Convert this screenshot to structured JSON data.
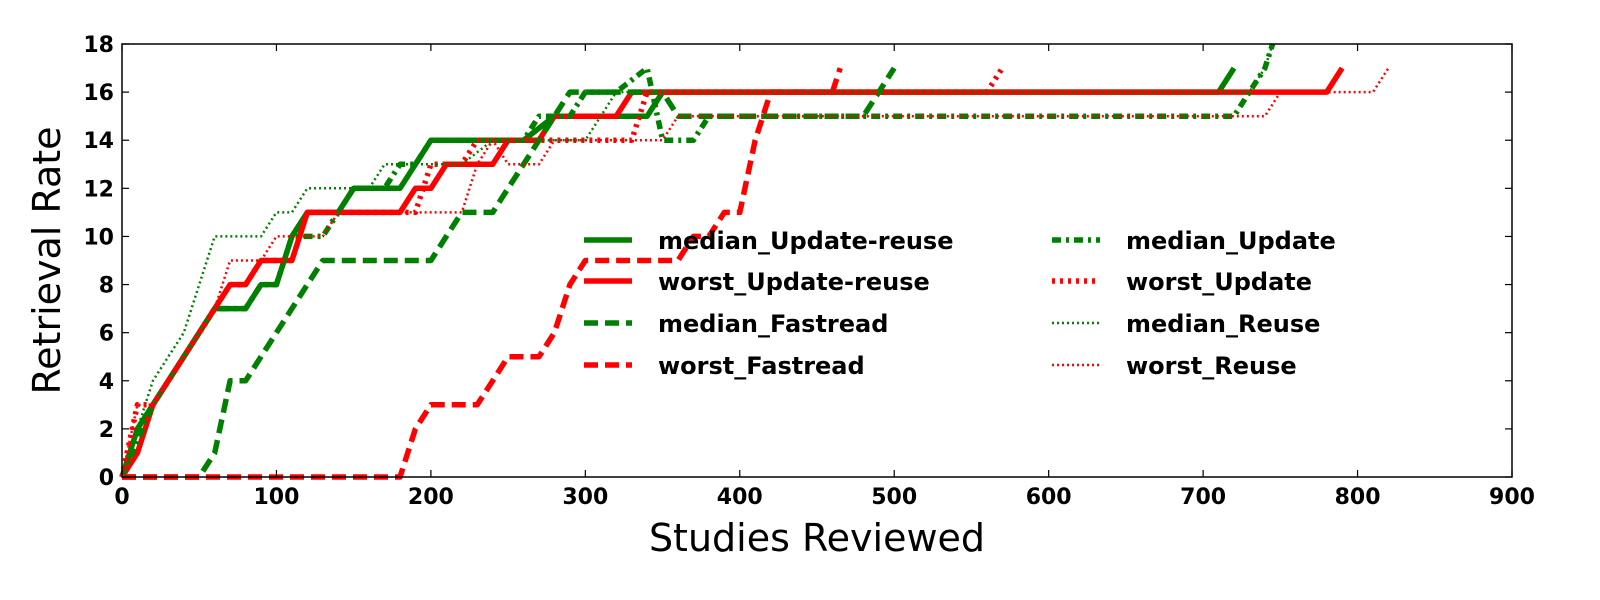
{
  "chart_data": {
    "type": "line",
    "title": "",
    "xlabel": "Studies Reviewed",
    "ylabel": "Retrieval Rate",
    "xlim": [
      0,
      900
    ],
    "ylim": [
      0,
      18
    ],
    "xticks": [
      0,
      100,
      200,
      300,
      400,
      500,
      600,
      700,
      800,
      900
    ],
    "yticks": [
      0,
      2,
      4,
      6,
      8,
      10,
      12,
      14,
      16,
      18
    ],
    "grid": false,
    "legend_placement": "center",
    "legend_columns": 2,
    "series": [
      {
        "name": "median_Update-reuse",
        "color": "#008000",
        "style": "solid",
        "x": [
          0,
          10,
          20,
          30,
          40,
          50,
          60,
          70,
          80,
          90,
          100,
          110,
          120,
          130,
          140,
          150,
          160,
          170,
          180,
          190,
          200,
          220,
          240,
          260,
          280,
          300,
          310,
          320,
          330,
          340,
          350,
          360,
          710,
          720
        ],
        "y": [
          0,
          2,
          3,
          4,
          5,
          6,
          7,
          7,
          7,
          8,
          8,
          10,
          11,
          11,
          11,
          12,
          12,
          12,
          12,
          13,
          14,
          14,
          14,
          14,
          15,
          15,
          15,
          15,
          15,
          15,
          16,
          16,
          16,
          17
        ]
      },
      {
        "name": "worst_Update-reuse",
        "color": "#ff0000",
        "style": "solid",
        "x": [
          0,
          10,
          20,
          30,
          40,
          50,
          60,
          70,
          80,
          90,
          100,
          110,
          120,
          130,
          140,
          150,
          160,
          170,
          180,
          190,
          200,
          210,
          220,
          230,
          240,
          250,
          260,
          270,
          280,
          290,
          300,
          320,
          330,
          340,
          780,
          790
        ],
        "y": [
          0,
          1,
          3,
          4,
          5,
          6,
          7,
          8,
          8,
          9,
          9,
          9,
          11,
          11,
          11,
          11,
          11,
          11,
          11,
          12,
          12,
          13,
          13,
          13,
          13,
          14,
          14,
          14,
          15,
          15,
          15,
          15,
          16,
          16,
          16,
          17
        ]
      },
      {
        "name": "median_Fastread",
        "color": "#008000",
        "style": "dashed",
        "x": [
          0,
          50,
          60,
          70,
          80,
          90,
          100,
          110,
          120,
          130,
          140,
          150,
          160,
          170,
          180,
          190,
          200,
          210,
          220,
          230,
          240,
          250,
          260,
          270,
          280,
          290,
          300,
          340,
          350,
          360,
          480,
          490,
          500
        ],
        "y": [
          0,
          0,
          1,
          4,
          4,
          5,
          6,
          7,
          8,
          9,
          9,
          9,
          9,
          9,
          9,
          9,
          9,
          10,
          11,
          11,
          11,
          12,
          13,
          14,
          15,
          16,
          16,
          16,
          16,
          15,
          15,
          16,
          17
        ]
      },
      {
        "name": "worst_Fastread",
        "color": "#ff0000",
        "style": "dashed",
        "x": [
          0,
          180,
          190,
          200,
          210,
          220,
          230,
          240,
          250,
          260,
          270,
          280,
          290,
          300,
          310,
          320,
          330,
          340,
          350,
          360,
          370,
          380,
          390,
          400,
          410,
          420,
          430,
          450,
          460,
          465
        ],
        "y": [
          0,
          0,
          2,
          3,
          3,
          3,
          3,
          4,
          5,
          5,
          5,
          6,
          8,
          9,
          9,
          9,
          9,
          9,
          9,
          9,
          10,
          10,
          11,
          11,
          14,
          16,
          16,
          16,
          16,
          17
        ]
      },
      {
        "name": "median_Update",
        "color": "#008000",
        "style": "dashdot",
        "x": [
          0,
          20,
          40,
          60,
          70,
          80,
          90,
          100,
          110,
          120,
          130,
          140,
          150,
          160,
          170,
          180,
          190,
          200,
          220,
          240,
          260,
          270,
          280,
          290,
          300,
          320,
          340,
          350,
          360,
          370,
          380,
          390,
          410,
          720,
          730,
          740,
          745
        ],
        "y": [
          0,
          3,
          5,
          7,
          7,
          7,
          8,
          8,
          10,
          10,
          10,
          11,
          12,
          12,
          12,
          13,
          13,
          14,
          14,
          14,
          14,
          15,
          15,
          15,
          16,
          16,
          17,
          14,
          14,
          14,
          15,
          15,
          15,
          15,
          16,
          17,
          18
        ]
      },
      {
        "name": "worst_Update",
        "color": "#ff0000",
        "style": "dotted",
        "x": [
          0,
          10,
          20,
          30,
          40,
          50,
          60,
          70,
          80,
          90,
          100,
          110,
          120,
          130,
          140,
          150,
          160,
          170,
          180,
          190,
          200,
          210,
          220,
          230,
          240,
          250,
          260,
          270,
          280,
          300,
          330,
          340,
          360,
          380,
          400,
          520,
          550,
          560,
          570
        ],
        "y": [
          0,
          3,
          3,
          4,
          5,
          6,
          7,
          8,
          8,
          9,
          9,
          9,
          11,
          11,
          11,
          11,
          11,
          11,
          11,
          11,
          13,
          13,
          13,
          14,
          14,
          14,
          14,
          14,
          14,
          14,
          14,
          16,
          16,
          16,
          16,
          16,
          16,
          16,
          17
        ]
      },
      {
        "name": "median_Reuse",
        "color": "#008000",
        "style": "densedot",
        "x": [
          0,
          10,
          20,
          30,
          40,
          50,
          60,
          70,
          80,
          90,
          100,
          110,
          120,
          130,
          140,
          150,
          160,
          170,
          180,
          190,
          200,
          220,
          240,
          260,
          280,
          300,
          320,
          330,
          340,
          730,
          740,
          745
        ],
        "y": [
          0,
          2,
          4,
          5,
          6,
          8,
          10,
          10,
          10,
          10,
          11,
          11,
          12,
          12,
          12,
          12,
          12,
          13,
          13,
          13,
          13,
          13,
          14,
          14,
          14,
          14,
          16,
          16,
          16,
          16,
          17,
          18
        ]
      },
      {
        "name": "worst_Reuse",
        "color": "#ff0000",
        "style": "densedot",
        "x": [
          0,
          10,
          20,
          30,
          40,
          50,
          60,
          70,
          80,
          90,
          100,
          110,
          120,
          130,
          140,
          150,
          160,
          170,
          180,
          190,
          200,
          210,
          220,
          230,
          240,
          250,
          260,
          270,
          280,
          300,
          350,
          360,
          370,
          390,
          400,
          500,
          740,
          750,
          760,
          800,
          810,
          820
        ],
        "y": [
          0,
          3,
          3,
          4,
          5,
          6,
          7,
          9,
          9,
          9,
          10,
          10,
          10,
          10,
          11,
          11,
          11,
          11,
          11,
          11,
          11,
          11,
          11,
          13,
          14,
          13,
          13,
          13,
          14,
          14,
          14,
          15,
          15,
          15,
          15,
          15,
          15,
          16,
          16,
          16,
          16,
          17
        ]
      }
    ]
  }
}
